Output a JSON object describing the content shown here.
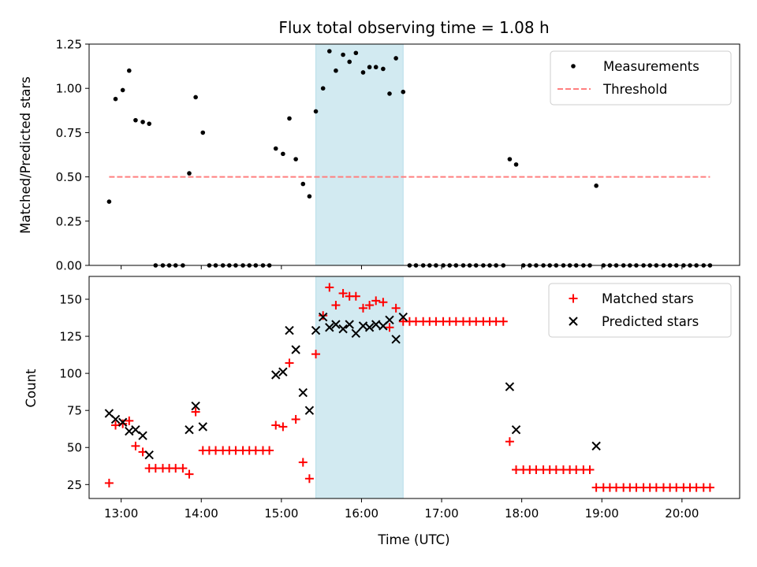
{
  "title": "Flux total observing time = 1.08 h",
  "colors": {
    "measurement": "#000000",
    "threshold": "#ff7f7f",
    "matched": "#ff0000",
    "predicted": "#000000",
    "highlight": "#add8e6"
  },
  "chart_data": [
    {
      "type": "scatter",
      "panel": "top",
      "ylabel": "Matched/Predicted stars",
      "xlim": [
        12.6,
        20.72
      ],
      "ylim": [
        0,
        1.25
      ],
      "yticks": [
        0.0,
        0.25,
        0.5,
        0.75,
        1.0,
        1.25
      ],
      "ytick_labels": [
        "0.00",
        "0.25",
        "0.50",
        "0.75",
        "1.00",
        "1.25"
      ],
      "highlight_span": [
        15.43,
        16.52
      ],
      "legend": [
        "Measurements",
        "Threshold"
      ],
      "legend_position": "top-right",
      "threshold": {
        "value": 0.5,
        "x_start": 12.85,
        "x_end": 20.35
      },
      "series": [
        {
          "name": "Measurements",
          "x": [
            12.85,
            12.93,
            13.02,
            13.1,
            13.18,
            13.27,
            13.35,
            13.43,
            13.52,
            13.6,
            13.68,
            13.77,
            13.85,
            13.93,
            14.02,
            14.1,
            14.18,
            14.27,
            14.35,
            14.43,
            14.52,
            14.6,
            14.68,
            14.77,
            14.85,
            14.93,
            15.02,
            15.1,
            15.18,
            15.27,
            15.35,
            15.43,
            15.52,
            15.6,
            15.68,
            15.77,
            15.85,
            15.93,
            16.02,
            16.1,
            16.18,
            16.27,
            16.35,
            16.43,
            16.52,
            16.6,
            16.68,
            16.77,
            16.85,
            16.93,
            17.02,
            17.1,
            17.18,
            17.27,
            17.35,
            17.43,
            17.52,
            17.6,
            17.68,
            17.77,
            17.85,
            17.93,
            18.02,
            18.1,
            18.18,
            18.27,
            18.35,
            18.43,
            18.52,
            18.6,
            18.68,
            18.77,
            18.85,
            18.93,
            19.02,
            19.1,
            19.18,
            19.27,
            19.35,
            19.43,
            19.52,
            19.6,
            19.68,
            19.77,
            19.85,
            19.93,
            20.02,
            20.1,
            20.18,
            20.27,
            20.35
          ],
          "y": [
            0.36,
            0.94,
            0.99,
            1.1,
            0.82,
            0.81,
            0.8,
            0,
            0,
            0,
            0,
            0,
            0.52,
            0.95,
            0.75,
            0,
            0,
            0,
            0,
            0,
            0,
            0,
            0,
            0,
            0,
            0.66,
            0.63,
            0.83,
            0.6,
            0.46,
            0.39,
            0.87,
            1.0,
            1.21,
            1.1,
            1.19,
            1.15,
            1.2,
            1.09,
            1.12,
            1.12,
            1.11,
            0.97,
            1.17,
            0.98,
            0,
            0,
            0,
            0,
            0,
            0,
            0,
            0,
            0,
            0,
            0,
            0,
            0,
            0,
            0,
            0.6,
            0.57,
            0,
            0,
            0,
            0,
            0,
            0,
            0,
            0,
            0,
            0,
            0,
            0.45,
            0,
            0,
            0,
            0,
            0,
            0,
            0,
            0,
            0,
            0,
            0,
            0,
            0,
            0,
            0,
            0,
            0
          ]
        }
      ]
    },
    {
      "type": "scatter",
      "panel": "bottom",
      "xlabel": "Time (UTC)",
      "ylabel": "Count",
      "xlim": [
        12.6,
        20.72
      ],
      "ylim": [
        15.6,
        165.4
      ],
      "xticks": [
        13,
        14,
        15,
        16,
        17,
        18,
        19,
        20
      ],
      "xtick_labels": [
        "13:00",
        "14:00",
        "15:00",
        "16:00",
        "17:00",
        "18:00",
        "19:00",
        "20:00"
      ],
      "yticks": [
        25,
        50,
        75,
        100,
        125,
        150
      ],
      "ytick_labels": [
        "25",
        "50",
        "75",
        "100",
        "125",
        "150"
      ],
      "highlight_span": [
        15.43,
        16.52
      ],
      "legend": [
        "Matched stars",
        "Predicted stars"
      ],
      "legend_position": "top-right",
      "series": [
        {
          "name": "Matched stars",
          "marker": "plus",
          "x": [
            12.85,
            12.93,
            13.02,
            13.1,
            13.18,
            13.27,
            13.35,
            13.43,
            13.52,
            13.6,
            13.68,
            13.77,
            13.85,
            13.93,
            14.02,
            14.1,
            14.18,
            14.27,
            14.35,
            14.43,
            14.52,
            14.6,
            14.68,
            14.77,
            14.85,
            14.93,
            15.02,
            15.1,
            15.18,
            15.27,
            15.35,
            15.43,
            15.52,
            15.6,
            15.68,
            15.77,
            15.85,
            15.93,
            16.02,
            16.1,
            16.18,
            16.27,
            16.35,
            16.43,
            16.52,
            16.6,
            16.68,
            16.77,
            16.85,
            16.93,
            17.02,
            17.1,
            17.18,
            17.27,
            17.35,
            17.43,
            17.52,
            17.6,
            17.68,
            17.77,
            17.85,
            17.93,
            18.02,
            18.1,
            18.18,
            18.27,
            18.35,
            18.43,
            18.52,
            18.6,
            18.68,
            18.77,
            18.85,
            18.93,
            19.02,
            19.1,
            19.18,
            19.27,
            19.35,
            19.43,
            19.52,
            19.6,
            19.68,
            19.77,
            19.85,
            19.93,
            20.02,
            20.1,
            20.18,
            20.27,
            20.35
          ],
          "y": [
            26,
            65,
            66,
            68,
            51,
            47,
            36,
            36,
            36,
            36,
            36,
            36,
            32,
            74,
            48,
            48,
            48,
            48,
            48,
            48,
            48,
            48,
            48,
            48,
            48,
            65,
            64,
            107,
            69,
            40,
            29,
            113,
            139,
            158,
            146,
            154,
            152,
            152,
            144,
            146,
            149,
            148,
            131,
            144,
            135,
            135,
            135,
            135,
            135,
            135,
            135,
            135,
            135,
            135,
            135,
            135,
            135,
            135,
            135,
            135,
            54,
            35,
            35,
            35,
            35,
            35,
            35,
            35,
            35,
            35,
            35,
            35,
            35,
            23,
            23,
            23,
            23,
            23,
            23,
            23,
            23,
            23,
            23,
            23,
            23,
            23,
            23,
            23,
            23,
            23,
            23
          ]
        },
        {
          "name": "Predicted stars",
          "marker": "x",
          "x": [
            12.85,
            12.93,
            13.02,
            13.1,
            13.18,
            13.27,
            13.35,
            13.85,
            13.93,
            14.02,
            14.93,
            15.02,
            15.1,
            15.18,
            15.27,
            15.35,
            15.43,
            15.52,
            15.6,
            15.68,
            15.77,
            15.85,
            15.93,
            16.02,
            16.1,
            16.18,
            16.27,
            16.35,
            16.43,
            16.52,
            17.85,
            17.93,
            18.93
          ],
          "y": [
            73,
            69,
            67,
            61,
            62,
            58,
            45,
            62,
            78,
            64,
            99,
            101,
            129,
            116,
            87,
            75,
            129,
            138,
            131,
            133,
            130,
            133,
            127,
            132,
            131,
            133,
            132,
            136,
            123,
            138,
            91,
            62,
            51
          ]
        }
      ]
    }
  ]
}
